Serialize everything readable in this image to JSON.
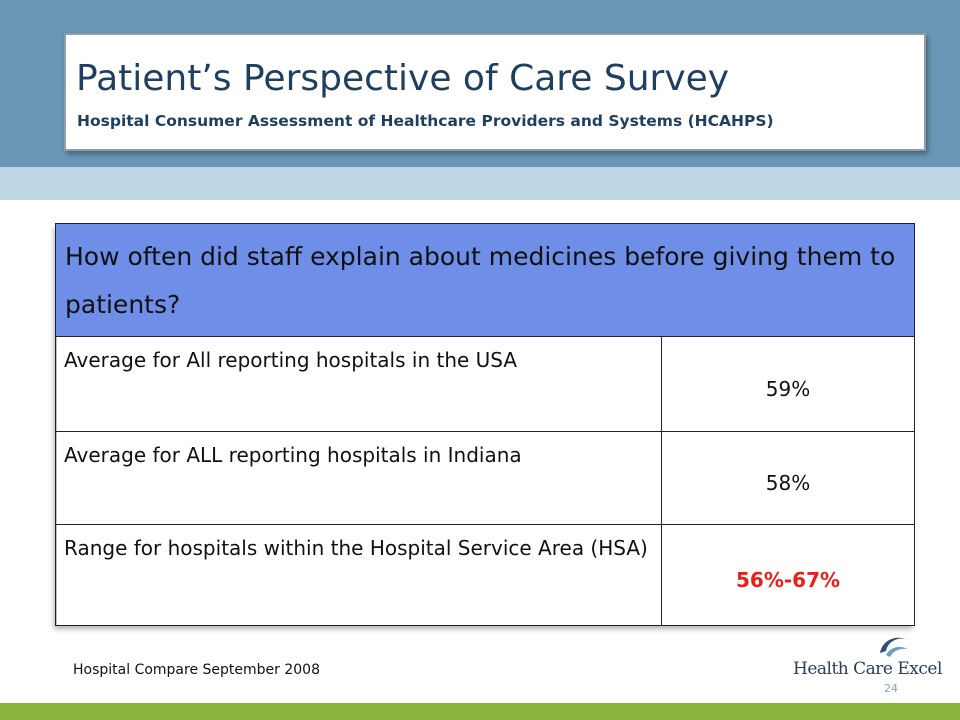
{
  "slide": {
    "title": "Patient’s Perspective of Care Survey",
    "subtitle": "Hospital Consumer Assessment of Healthcare Providers and Systems (HCAHPS)",
    "question": "How often did staff explain about medicines before giving them to patients?",
    "rows": [
      {
        "label": "Average for All reporting hospitals in the USA",
        "value": "59%"
      },
      {
        "label": "Average for ALL reporting hospitals in Indiana",
        "value": "58%"
      },
      {
        "label": "Range for hospitals within the Hospital Service  Area (HSA)",
        "value": "56%-67%"
      }
    ],
    "source": "Hospital Compare September 2008",
    "page_number": "24",
    "logo_text": "Health Care Excel"
  },
  "colors": {
    "header_band": "#6a97b5",
    "header_strip": "#bcd6e4",
    "question_fill": "#6e8ee8",
    "highlight_value": "#e8201a",
    "footer_band": "#8ab43c",
    "title_text": "#1f3f5e"
  }
}
